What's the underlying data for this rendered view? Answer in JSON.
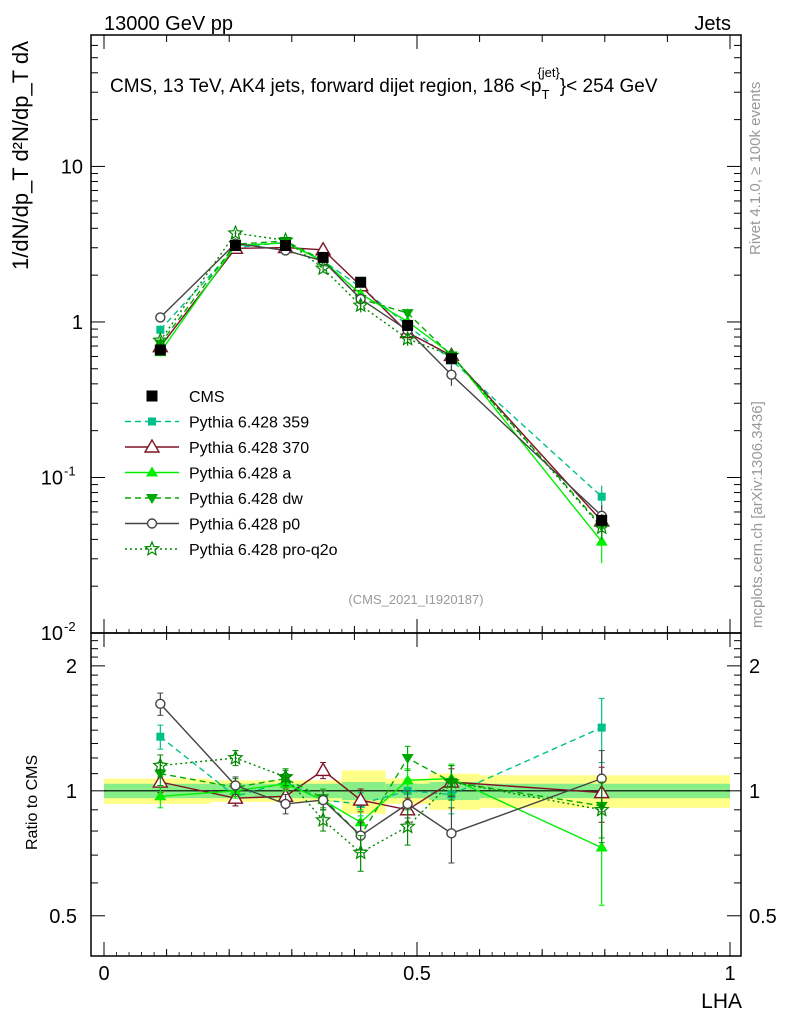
{
  "header": {
    "left": "13000 GeV pp",
    "right": "Jets"
  },
  "side_text": {
    "rivet": "Rivet 4.1.0, ≥ 100k events",
    "mcplots": "mcplots.cern.ch [arXiv:1306.3436]"
  },
  "chart_data": {
    "type": "line",
    "title": "CMS, 13 TeV, AK4 jets, forward dijet region, 186 <p_T^{jet}< 254 GeV",
    "title_parts": {
      "prefix": "CMS, 13 TeV, AK4 jets, forward dijet region, 186 <p",
      "sub": "T",
      "sup": "{jet}",
      "suffix": "}< 254 GeV"
    },
    "watermark": "(CMS_2021_I1920187)",
    "xlabel": "LHA",
    "ylabel": "1/dN/dp_T d²N/dp_T dλ",
    "ratio_ylabel": "Ratio to CMS",
    "xlim": [
      0,
      1
    ],
    "ylim_main": [
      0.01,
      70
    ],
    "ylim_ratio": [
      0.4,
      2.4
    ],
    "x_ticks": [
      "0",
      "0.5",
      "1"
    ],
    "y_ticks_main": [
      "10",
      "1",
      "10^-1",
      "10^-2"
    ],
    "y_ticks_ratio": [
      "2",
      "1",
      "0.5"
    ],
    "x": [
      0.09,
      0.21,
      0.29,
      0.35,
      0.41,
      0.485,
      0.555,
      0.795
    ],
    "data": {
      "name": "CMS",
      "values": [
        0.66,
        3.1,
        3.1,
        2.6,
        1.8,
        0.95,
        0.58,
        0.053
      ],
      "errors": [
        0.05,
        0.12,
        0.12,
        0.1,
        0.08,
        0.05,
        0.04,
        0.005
      ]
    },
    "series": [
      {
        "name": "Pythia 6.428 359",
        "color": "#00c08a",
        "dash": "6,4",
        "marker": "square-filled",
        "ratio": [
          1.35,
          0.97,
          1.05,
          0.95,
          0.93,
          1.0,
          0.98,
          1.42
        ],
        "ratio_err": [
          0.09,
          0.05,
          0.05,
          0.05,
          0.06,
          0.07,
          0.1,
          0.25
        ]
      },
      {
        "name": "Pythia 6.428 370",
        "color": "#7f1325",
        "dash": "",
        "marker": "triangle-open",
        "ratio": [
          1.05,
          0.96,
          0.97,
          1.12,
          0.95,
          0.9,
          1.05,
          0.99
        ],
        "ratio_err": [
          0.06,
          0.04,
          0.04,
          0.05,
          0.06,
          0.06,
          0.08,
          0.15
        ]
      },
      {
        "name": "Pythia 6.428 a",
        "color": "#00ee00",
        "dash": "",
        "marker": "triangle-filled",
        "ratio": [
          0.97,
          1.0,
          1.04,
          0.95,
          0.84,
          1.06,
          1.07,
          0.73
        ],
        "ratio_err": [
          0.06,
          0.04,
          0.04,
          0.05,
          0.06,
          0.07,
          0.09,
          0.2
        ]
      },
      {
        "name": "Pythia 6.428 dw",
        "color": "#00aa00",
        "dash": "6,4",
        "marker": "triangle-down-filled",
        "ratio": [
          1.1,
          1.02,
          1.07,
          0.96,
          0.78,
          1.2,
          1.05,
          0.92
        ],
        "ratio_err": [
          0.07,
          0.05,
          0.05,
          0.05,
          0.07,
          0.08,
          0.1,
          0.15
        ]
      },
      {
        "name": "Pythia 6.428 p0",
        "color": "#444444",
        "dash": "",
        "marker": "circle-open",
        "ratio": [
          1.62,
          1.03,
          0.93,
          0.95,
          0.78,
          0.93,
          0.79,
          1.07
        ],
        "ratio_err": [
          0.1,
          0.05,
          0.05,
          0.05,
          0.06,
          0.07,
          0.12,
          0.18
        ]
      },
      {
        "name": "Pythia 6.428 pro-q2o",
        "color": "#008800",
        "dash": "2,3",
        "marker": "star-open",
        "ratio": [
          1.15,
          1.2,
          1.08,
          0.85,
          0.71,
          0.82,
          1.05,
          0.9
        ],
        "ratio_err": [
          0.07,
          0.05,
          0.05,
          0.05,
          0.07,
          0.08,
          0.1,
          0.15
        ]
      }
    ],
    "bands": {
      "edges": [
        0.0,
        0.17,
        0.25,
        0.32,
        0.38,
        0.45,
        0.52,
        0.6,
        1.0
      ],
      "inner": [
        0.04,
        0.04,
        0.04,
        0.04,
        0.05,
        0.04,
        0.05,
        0.04
      ],
      "outer": [
        0.07,
        0.06,
        0.06,
        0.06,
        0.12,
        0.07,
        0.1,
        0.09
      ]
    }
  }
}
